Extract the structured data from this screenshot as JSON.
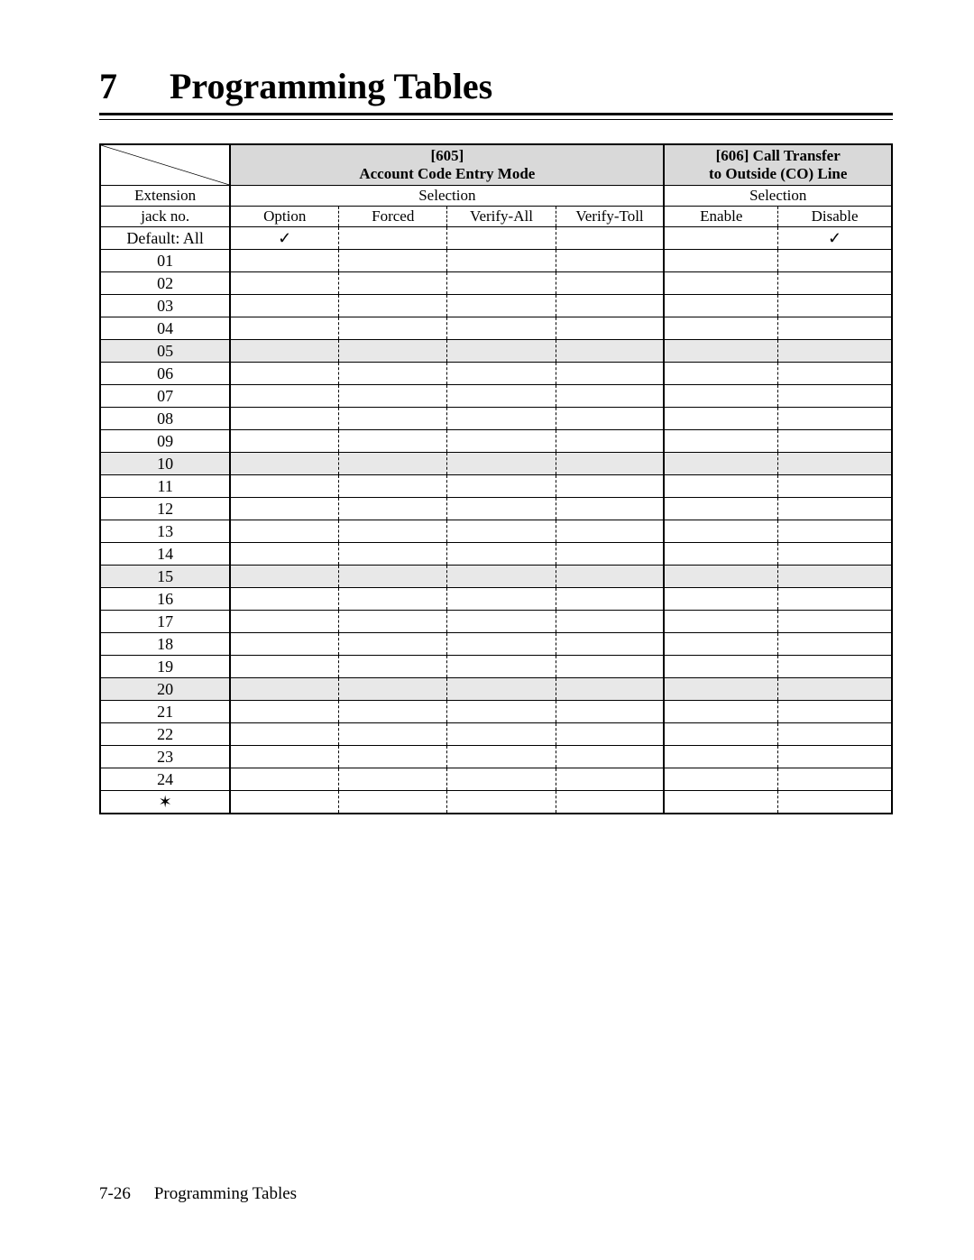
{
  "chapter": {
    "num": "7",
    "title": "Programming Tables"
  },
  "footer": {
    "page": "7-26",
    "section": "Programming Tables"
  },
  "table": {
    "groupA": {
      "code": "[605]",
      "title": "Account Code Entry Mode",
      "selection_label": "Selection",
      "cols": [
        "Option",
        "Forced",
        "Verify-All",
        "Verify-Toll"
      ]
    },
    "groupB": {
      "code_title": "[606] Call Transfer",
      "subtitle": "to Outside (CO) Line",
      "selection_label": "Selection",
      "cols": [
        "Enable",
        "Disable"
      ]
    },
    "lead": {
      "line1": "Extension",
      "line2": "jack no."
    },
    "default_label": "Default: All",
    "default_marks": {
      "groupA_col": 0,
      "groupB_col": 1
    },
    "check_glyph": "✓",
    "star_glyph": "✶",
    "rows": [
      "01",
      "02",
      "03",
      "04",
      "05",
      "06",
      "07",
      "08",
      "09",
      "10",
      "11",
      "12",
      "13",
      "14",
      "15",
      "16",
      "17",
      "18",
      "19",
      "20",
      "21",
      "22",
      "23",
      "24"
    ],
    "shaded_every": 5,
    "colors": {
      "header_bg": "#d9d9d9",
      "shade_bg": "#e8e8e8",
      "border": "#000000"
    }
  }
}
